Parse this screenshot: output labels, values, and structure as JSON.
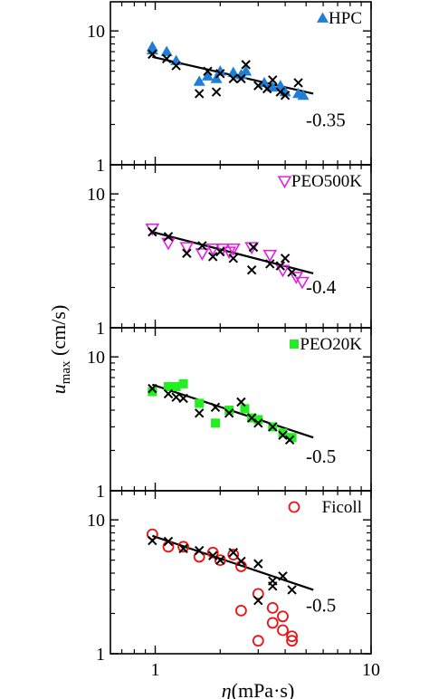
{
  "chart_data": {
    "type": "scatter",
    "x_scale": "log",
    "y_scale": "log",
    "xlim": [
      0.62,
      10
    ],
    "ylim": [
      1,
      16.5
    ],
    "x_ticks": [
      "1",
      "10"
    ],
    "y_ticks": [
      "1",
      "10"
    ],
    "xlabel": "η (mPa·s)",
    "ylabel": "u_max (cm/s)",
    "panels": [
      {
        "name": "HPC",
        "color": "#1f7fd6",
        "marker": "triangle-up-filled",
        "slope_label": "-0.35",
        "fit": {
          "x": [
            0.97,
            5.4
          ],
          "y": [
            6.4,
            3.4
          ]
        },
        "series_points": [
          [
            0.97,
            7.6
          ],
          [
            0.97,
            7.2
          ],
          [
            1.13,
            7.0
          ],
          [
            1.25,
            6.0
          ],
          [
            1.6,
            4.2
          ],
          [
            1.75,
            4.6
          ],
          [
            1.92,
            4.4
          ],
          [
            2.0,
            5.0
          ],
          [
            2.3,
            4.9
          ],
          [
            2.5,
            4.7
          ],
          [
            2.63,
            5.0
          ],
          [
            3.2,
            4.1
          ],
          [
            3.5,
            3.8
          ],
          [
            3.8,
            3.9
          ],
          [
            4.0,
            3.5
          ],
          [
            4.6,
            3.4
          ],
          [
            4.85,
            3.3
          ]
        ],
        "reference_points": [
          [
            0.97,
            6.7
          ],
          [
            1.13,
            6.2
          ],
          [
            1.25,
            5.5
          ],
          [
            1.6,
            3.4
          ],
          [
            1.75,
            5.0
          ],
          [
            1.92,
            3.5
          ],
          [
            2.0,
            4.8
          ],
          [
            2.3,
            4.4
          ],
          [
            2.5,
            4.4
          ],
          [
            2.63,
            5.6
          ],
          [
            3.0,
            3.9
          ],
          [
            3.3,
            3.7
          ],
          [
            3.5,
            4.3
          ],
          [
            3.8,
            3.5
          ],
          [
            4.0,
            3.3
          ],
          [
            4.6,
            4.1
          ]
        ]
      },
      {
        "name": "PEO500K",
        "color": "#e020e0",
        "marker": "triangle-down-open",
        "slope_label": "-0.4",
        "fit": {
          "x": [
            0.97,
            5.4
          ],
          "y": [
            5.2,
            2.55
          ]
        },
        "series_points": [
          [
            0.97,
            5.5
          ],
          [
            1.15,
            4.3
          ],
          [
            1.4,
            4.0
          ],
          [
            1.65,
            3.6
          ],
          [
            1.85,
            3.9
          ],
          [
            2.05,
            3.9
          ],
          [
            2.2,
            3.7
          ],
          [
            2.3,
            3.9
          ],
          [
            2.8,
            4.0
          ],
          [
            3.4,
            3.5
          ],
          [
            3.9,
            2.7
          ],
          [
            4.5,
            2.4
          ],
          [
            4.8,
            2.2
          ]
        ],
        "reference_points": [
          [
            0.97,
            5.2
          ],
          [
            1.15,
            4.8
          ],
          [
            1.4,
            3.6
          ],
          [
            1.65,
            4.1
          ],
          [
            1.85,
            3.4
          ],
          [
            2.0,
            3.7
          ],
          [
            2.3,
            3.3
          ],
          [
            2.8,
            2.7
          ],
          [
            2.85,
            4.0
          ],
          [
            3.4,
            3.0
          ],
          [
            3.8,
            2.9
          ],
          [
            4.0,
            3.3
          ],
          [
            4.3,
            2.6
          ]
        ]
      },
      {
        "name": "PEO20K",
        "color": "#22ee22",
        "marker": "square-filled",
        "slope_label": "-0.5",
        "fit": {
          "x": [
            0.97,
            5.4
          ],
          "y": [
            6.2,
            2.5
          ]
        },
        "series_points": [
          [
            0.97,
            5.5
          ],
          [
            1.15,
            6.0
          ],
          [
            1.25,
            6.0
          ],
          [
            1.35,
            6.3
          ],
          [
            1.6,
            4.5
          ],
          [
            1.9,
            3.2
          ],
          [
            2.2,
            4.0
          ],
          [
            2.6,
            4.1
          ],
          [
            2.8,
            3.5
          ],
          [
            3.0,
            3.4
          ],
          [
            3.5,
            3.0
          ],
          [
            3.9,
            2.7
          ],
          [
            4.3,
            2.5
          ]
        ],
        "reference_points": [
          [
            0.97,
            5.8
          ],
          [
            1.15,
            5.3
          ],
          [
            1.25,
            5.0
          ],
          [
            1.35,
            4.9
          ],
          [
            1.6,
            3.8
          ],
          [
            1.9,
            4.2
          ],
          [
            2.2,
            3.8
          ],
          [
            2.5,
            4.6
          ],
          [
            2.8,
            3.5
          ],
          [
            3.0,
            3.2
          ],
          [
            3.5,
            3.0
          ],
          [
            3.9,
            2.6
          ],
          [
            4.2,
            2.4
          ]
        ]
      },
      {
        "name": "Ficoll",
        "color": "#ee1111",
        "marker": "circle-open",
        "slope_label": "-0.5",
        "fit": {
          "x": [
            0.97,
            5.4
          ],
          "y": [
            7.6,
            3.0
          ]
        },
        "series_points": [
          [
            0.97,
            7.8
          ],
          [
            1.15,
            6.3
          ],
          [
            1.35,
            6.3
          ],
          [
            1.6,
            5.3
          ],
          [
            1.85,
            5.7
          ],
          [
            2.0,
            5.0
          ],
          [
            2.3,
            5.5
          ],
          [
            2.5,
            4.5
          ],
          [
            2.5,
            2.1
          ],
          [
            3.0,
            2.8
          ],
          [
            3.0,
            1.25
          ],
          [
            3.5,
            2.2
          ],
          [
            3.5,
            1.7
          ],
          [
            3.9,
            1.9
          ],
          [
            3.9,
            1.5
          ],
          [
            4.3,
            1.35
          ],
          [
            4.3,
            1.25
          ]
        ],
        "reference_points": [
          [
            0.97,
            7.0
          ],
          [
            1.15,
            6.9
          ],
          [
            1.35,
            6.1
          ],
          [
            1.6,
            5.9
          ],
          [
            1.85,
            5.4
          ],
          [
            2.0,
            5.0
          ],
          [
            2.3,
            5.7
          ],
          [
            2.5,
            4.9
          ],
          [
            3.0,
            4.7
          ],
          [
            3.0,
            2.5
          ],
          [
            3.5,
            3.5
          ],
          [
            3.5,
            3.2
          ],
          [
            3.9,
            3.8
          ],
          [
            4.3,
            3.0
          ]
        ]
      }
    ]
  }
}
